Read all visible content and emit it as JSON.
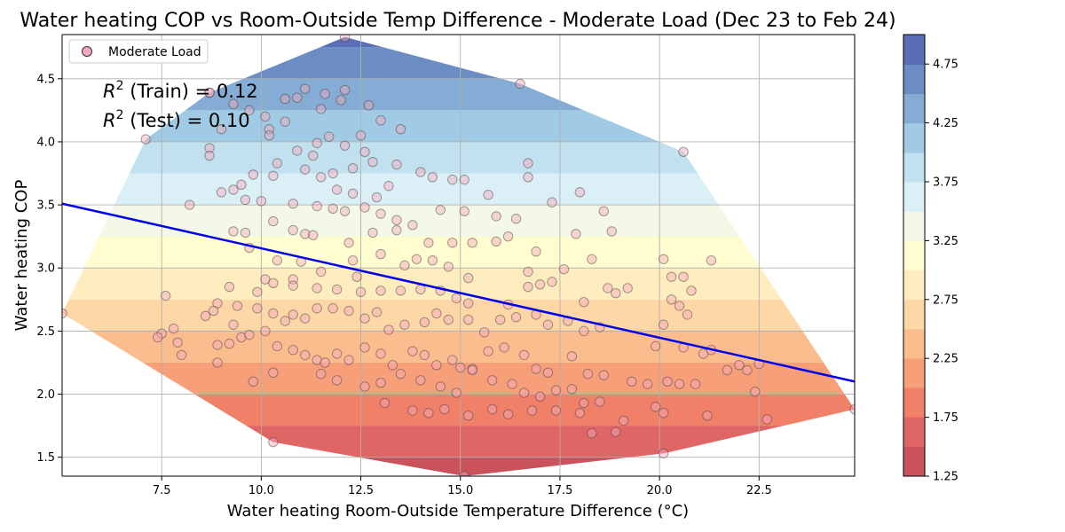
{
  "chart_data": {
    "type": "scatter",
    "title": "Water heating COP vs Room-Outside Temp Difference - Moderate Load (Dec 23 to Feb 24)",
    "xlabel": "Water heating Room-Outside Temperature Difference (°C)",
    "ylabel": "Water heating COP",
    "xlim": [
      5.0,
      24.9
    ],
    "ylim": [
      1.35,
      4.85
    ],
    "x_ticks": [
      7.5,
      10.0,
      12.5,
      15.0,
      17.5,
      20.0,
      22.5
    ],
    "x_tick_labels": [
      "7.5",
      "10.0",
      "12.5",
      "15.0",
      "17.5",
      "20.0",
      "22.5"
    ],
    "y_ticks": [
      1.5,
      2.0,
      2.5,
      3.0,
      3.5,
      4.0,
      4.5
    ],
    "y_tick_labels": [
      "1.5",
      "2.0",
      "2.5",
      "3.0",
      "3.5",
      "4.0",
      "4.5"
    ],
    "grid": true,
    "legend": {
      "position": "top-left",
      "entries": [
        "Moderate Load"
      ]
    },
    "annotations": [
      {
        "prefix": "R",
        "sup": "2",
        "text": " (Train) = 0.12"
      },
      {
        "prefix": "R",
        "sup": "2",
        "text": " (Test) = 0.10"
      }
    ],
    "regression": {
      "x": [
        5.0,
        24.9
      ],
      "y": [
        3.51,
        2.1
      ],
      "color": "#0000ee"
    },
    "colorbar": {
      "levels": [
        1.25,
        1.5,
        1.75,
        2.0,
        2.25,
        2.5,
        2.75,
        3.0,
        3.25,
        3.5,
        3.75,
        4.0,
        4.25,
        4.5,
        4.75,
        5.0
      ],
      "colors": [
        "#c1343f",
        "#da4a4a",
        "#ee6a4f",
        "#f68e62",
        "#fbb17a",
        "#fdd097",
        "#feeab3",
        "#fffcc8",
        "#f1f8e2",
        "#d5edf4",
        "#b6dcec",
        "#91c2df",
        "#6f9dcc",
        "#5179b8",
        "#3d55a8"
      ],
      "tick_values": [
        1.25,
        1.75,
        2.25,
        2.75,
        3.25,
        3.75,
        4.25,
        4.75
      ],
      "tick_labels": [
        "1.25",
        "1.75",
        "2.25",
        "2.75",
        "3.25",
        "3.75",
        "4.25",
        "4.75"
      ]
    },
    "series": [
      {
        "name": "Moderate Load",
        "color": "#f7a8bd",
        "points": [
          [
            12.1,
            4.83
          ],
          [
            16.5,
            4.46
          ],
          [
            8.7,
            4.39
          ],
          [
            7.1,
            4.02
          ],
          [
            20.6,
            3.92
          ],
          [
            5.0,
            2.64
          ],
          [
            24.9,
            1.88
          ],
          [
            15.1,
            1.35
          ],
          [
            10.3,
            1.62
          ],
          [
            22.7,
            1.8
          ],
          [
            12.1,
            4.41
          ],
          [
            10.1,
            4.2
          ],
          [
            11.1,
            4.42
          ],
          [
            11.6,
            4.38
          ],
          [
            12.0,
            4.33
          ],
          [
            10.6,
            4.34
          ],
          [
            11.5,
            4.26
          ],
          [
            12.7,
            4.29
          ],
          [
            8.7,
            4.39
          ],
          [
            9.0,
            4.1
          ],
          [
            9.3,
            4.3
          ],
          [
            10.9,
            4.35
          ],
          [
            13.0,
            4.17
          ],
          [
            10.2,
            4.1
          ],
          [
            10.6,
            4.16
          ],
          [
            9.7,
            4.25
          ],
          [
            11.4,
            3.99
          ],
          [
            12.1,
            3.97
          ],
          [
            12.5,
            4.05
          ],
          [
            11.7,
            4.04
          ],
          [
            13.5,
            4.1
          ],
          [
            10.2,
            4.05
          ],
          [
            10.9,
            3.93
          ],
          [
            11.3,
            3.89
          ],
          [
            12.6,
            3.92
          ],
          [
            8.7,
            3.95
          ],
          [
            8.7,
            3.89
          ],
          [
            10.4,
            3.83
          ],
          [
            11.1,
            3.78
          ],
          [
            11.8,
            3.75
          ],
          [
            12.3,
            3.79
          ],
          [
            12.8,
            3.84
          ],
          [
            13.4,
            3.82
          ],
          [
            14.0,
            3.76
          ],
          [
            14.3,
            3.72
          ],
          [
            16.7,
            3.83
          ],
          [
            16.7,
            3.72
          ],
          [
            14.8,
            3.7
          ],
          [
            15.1,
            3.7
          ],
          [
            15.7,
            3.58
          ],
          [
            17.3,
            3.52
          ],
          [
            18.0,
            3.6
          ],
          [
            13.2,
            3.65
          ],
          [
            11.5,
            3.72
          ],
          [
            11.9,
            3.62
          ],
          [
            12.3,
            3.59
          ],
          [
            12.9,
            3.56
          ],
          [
            10.3,
            3.73
          ],
          [
            9.8,
            3.74
          ],
          [
            9.5,
            3.66
          ],
          [
            9.3,
            3.62
          ],
          [
            9.0,
            3.6
          ],
          [
            8.2,
            3.5
          ],
          [
            9.6,
            3.54
          ],
          [
            10.0,
            3.53
          ],
          [
            10.8,
            3.51
          ],
          [
            11.4,
            3.49
          ],
          [
            11.8,
            3.47
          ],
          [
            12.1,
            3.45
          ],
          [
            12.6,
            3.48
          ],
          [
            13.0,
            3.43
          ],
          [
            13.4,
            3.38
          ],
          [
            13.8,
            3.34
          ],
          [
            14.5,
            3.46
          ],
          [
            15.1,
            3.45
          ],
          [
            15.9,
            3.41
          ],
          [
            16.4,
            3.39
          ],
          [
            18.6,
            3.45
          ],
          [
            10.3,
            3.37
          ],
          [
            10.8,
            3.3
          ],
          [
            11.1,
            3.27
          ],
          [
            11.3,
            3.26
          ],
          [
            12.2,
            3.2
          ],
          [
            12.8,
            3.28
          ],
          [
            13.4,
            3.3
          ],
          [
            14.2,
            3.2
          ],
          [
            14.8,
            3.2
          ],
          [
            15.3,
            3.2
          ],
          [
            15.9,
            3.21
          ],
          [
            16.2,
            3.25
          ],
          [
            16.9,
            3.13
          ],
          [
            17.9,
            3.27
          ],
          [
            18.8,
            3.29
          ],
          [
            20.1,
            3.07
          ],
          [
            21.3,
            3.06
          ],
          [
            9.3,
            3.29
          ],
          [
            9.6,
            3.28
          ],
          [
            9.7,
            3.16
          ],
          [
            10.4,
            3.06
          ],
          [
            11.0,
            3.05
          ],
          [
            12.3,
            3.06
          ],
          [
            13.0,
            3.11
          ],
          [
            13.6,
            3.02
          ],
          [
            13.9,
            3.07
          ],
          [
            14.3,
            3.06
          ],
          [
            14.7,
            3.01
          ],
          [
            15.2,
            2.92
          ],
          [
            16.7,
            2.97
          ],
          [
            17.6,
            2.99
          ],
          [
            18.3,
            3.07
          ],
          [
            12.4,
            2.93
          ],
          [
            11.5,
            2.97
          ],
          [
            10.8,
            2.91
          ],
          [
            10.1,
            2.91
          ],
          [
            9.2,
            2.85
          ],
          [
            8.9,
            2.72
          ],
          [
            9.4,
            2.7
          ],
          [
            9.9,
            2.81
          ],
          [
            10.3,
            2.88
          ],
          [
            10.8,
            2.86
          ],
          [
            11.4,
            2.84
          ],
          [
            11.9,
            2.83
          ],
          [
            12.5,
            2.81
          ],
          [
            13.0,
            2.82
          ],
          [
            13.5,
            2.82
          ],
          [
            14.0,
            2.83
          ],
          [
            14.5,
            2.82
          ],
          [
            14.9,
            2.76
          ],
          [
            15.2,
            2.72
          ],
          [
            16.2,
            2.71
          ],
          [
            16.7,
            2.85
          ],
          [
            17.0,
            2.87
          ],
          [
            17.3,
            2.89
          ],
          [
            18.1,
            2.73
          ],
          [
            18.7,
            2.84
          ],
          [
            18.9,
            2.8
          ],
          [
            19.2,
            2.84
          ],
          [
            20.3,
            2.93
          ],
          [
            20.6,
            2.93
          ],
          [
            20.8,
            2.82
          ],
          [
            20.3,
            2.75
          ],
          [
            20.5,
            2.7
          ],
          [
            20.7,
            2.63
          ],
          [
            20.1,
            2.55
          ],
          [
            7.6,
            2.78
          ],
          [
            8.6,
            2.62
          ],
          [
            8.8,
            2.66
          ],
          [
            9.3,
            2.55
          ],
          [
            9.5,
            2.45
          ],
          [
            9.9,
            2.68
          ],
          [
            10.3,
            2.64
          ],
          [
            10.6,
            2.58
          ],
          [
            10.8,
            2.63
          ],
          [
            11.1,
            2.6
          ],
          [
            11.4,
            2.68
          ],
          [
            11.8,
            2.68
          ],
          [
            12.2,
            2.66
          ],
          [
            12.6,
            2.6
          ],
          [
            12.9,
            2.65
          ],
          [
            13.2,
            2.51
          ],
          [
            13.6,
            2.55
          ],
          [
            14.1,
            2.57
          ],
          [
            14.4,
            2.64
          ],
          [
            14.7,
            2.59
          ],
          [
            15.2,
            2.59
          ],
          [
            15.6,
            2.49
          ],
          [
            16.0,
            2.59
          ],
          [
            16.4,
            2.61
          ],
          [
            16.9,
            2.63
          ],
          [
            17.2,
            2.55
          ],
          [
            17.7,
            2.58
          ],
          [
            18.1,
            2.5
          ],
          [
            18.5,
            2.53
          ],
          [
            19.9,
            2.38
          ],
          [
            20.6,
            2.37
          ],
          [
            21.1,
            2.32
          ],
          [
            22.0,
            2.23
          ],
          [
            22.2,
            2.19
          ],
          [
            22.4,
            2.02
          ],
          [
            7.5,
            2.48
          ],
          [
            7.8,
            2.52
          ],
          [
            7.9,
            2.41
          ],
          [
            8.0,
            2.31
          ],
          [
            8.9,
            2.39
          ],
          [
            8.9,
            2.25
          ],
          [
            9.2,
            2.4
          ],
          [
            9.7,
            2.47
          ],
          [
            10.1,
            2.5
          ],
          [
            10.4,
            2.38
          ],
          [
            10.8,
            2.35
          ],
          [
            11.1,
            2.31
          ],
          [
            11.4,
            2.27
          ],
          [
            11.6,
            2.25
          ],
          [
            11.9,
            2.32
          ],
          [
            12.2,
            2.27
          ],
          [
            12.6,
            2.37
          ],
          [
            13.0,
            2.32
          ],
          [
            13.3,
            2.23
          ],
          [
            13.8,
            2.34
          ],
          [
            14.1,
            2.31
          ],
          [
            14.4,
            2.23
          ],
          [
            14.8,
            2.27
          ],
          [
            15.0,
            2.21
          ],
          [
            15.3,
            2.2
          ],
          [
            15.7,
            2.34
          ],
          [
            16.1,
            2.37
          ],
          [
            16.6,
            2.31
          ],
          [
            16.9,
            2.2
          ],
          [
            17.2,
            2.17
          ],
          [
            17.8,
            2.3
          ],
          [
            18.2,
            2.16
          ],
          [
            18.6,
            2.15
          ],
          [
            19.3,
            2.1
          ],
          [
            19.7,
            2.08
          ],
          [
            20.2,
            2.1
          ],
          [
            20.5,
            2.08
          ],
          [
            20.9,
            2.08
          ],
          [
            21.3,
            2.35
          ],
          [
            21.7,
            2.19
          ],
          [
            22.5,
            2.24
          ],
          [
            7.4,
            2.45
          ],
          [
            9.8,
            2.1
          ],
          [
            10.3,
            2.17
          ],
          [
            11.5,
            2.16
          ],
          [
            11.9,
            2.11
          ],
          [
            12.6,
            2.06
          ],
          [
            13.0,
            2.09
          ],
          [
            13.5,
            2.16
          ],
          [
            14.0,
            2.11
          ],
          [
            14.5,
            2.06
          ],
          [
            14.9,
            2.01
          ],
          [
            15.3,
            2.19
          ],
          [
            15.8,
            2.11
          ],
          [
            16.3,
            2.08
          ],
          [
            16.6,
            2.01
          ],
          [
            17.0,
            1.98
          ],
          [
            17.4,
            2.03
          ],
          [
            17.8,
            2.04
          ],
          [
            18.1,
            1.93
          ],
          [
            18.5,
            1.94
          ],
          [
            19.1,
            1.79
          ],
          [
            19.9,
            1.9
          ],
          [
            20.1,
            1.85
          ],
          [
            21.2,
            1.83
          ],
          [
            13.1,
            1.93
          ],
          [
            13.8,
            1.87
          ],
          [
            14.2,
            1.85
          ],
          [
            14.6,
            1.88
          ],
          [
            15.2,
            1.83
          ],
          [
            15.8,
            1.88
          ],
          [
            16.2,
            1.84
          ],
          [
            16.8,
            1.87
          ],
          [
            17.4,
            1.87
          ],
          [
            18.0,
            1.85
          ],
          [
            18.3,
            1.69
          ],
          [
            18.9,
            1.7
          ],
          [
            20.1,
            1.53
          ]
        ]
      }
    ]
  }
}
